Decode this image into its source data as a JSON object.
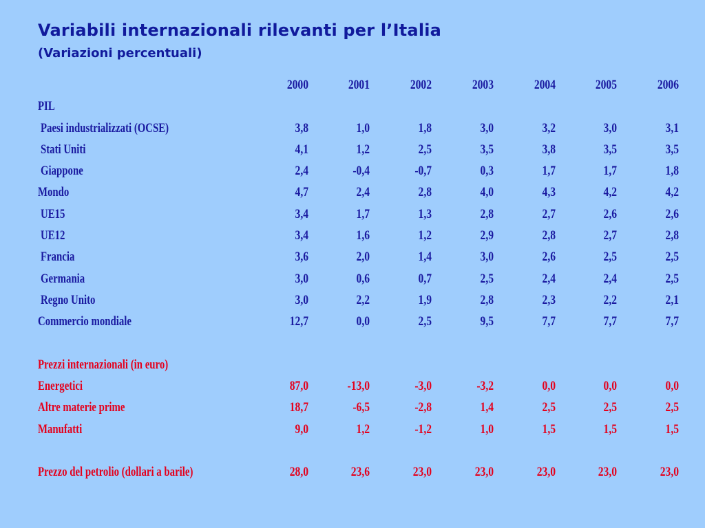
{
  "title": "Variabili internazionali rilevanti per l’Italia",
  "subtitle": "(Variazioni percentuali)",
  "colors": {
    "background": "#9fcdfd",
    "primary": "#1a1aa0",
    "accent": "#e4001c"
  },
  "years": [
    "2000",
    "2001",
    "2002",
    "2003",
    "2004",
    "2005",
    "2006"
  ],
  "section_blue": {
    "header": "PIL",
    "rows": [
      {
        "label": "Paesi industrializzati (OCSE)",
        "values": [
          "3,8",
          "1,0",
          "1,8",
          "3,0",
          "3,2",
          "3,0",
          "3,1"
        ]
      },
      {
        "label": "Stati Uniti",
        "values": [
          "4,1",
          "1,2",
          "2,5",
          "3,5",
          "3,8",
          "3,5",
          "3,5"
        ]
      },
      {
        "label": "Giappone",
        "values": [
          "2,4",
          "-0,4",
          "-0,7",
          "0,3",
          "1,7",
          "1,7",
          "1,8"
        ]
      },
      {
        "label": "Mondo",
        "values": [
          "4,7",
          "2,4",
          "2,8",
          "4,0",
          "4,3",
          "4,2",
          "4,2"
        ]
      },
      {
        "label": "UE15",
        "values": [
          "3,4",
          "1,7",
          "1,3",
          "2,8",
          "2,7",
          "2,6",
          "2,6"
        ]
      },
      {
        "label": "UE12",
        "values": [
          "3,4",
          "1,6",
          "1,2",
          "2,9",
          "2,8",
          "2,7",
          "2,8"
        ]
      },
      {
        "label": "Francia",
        "values": [
          "3,6",
          "2,0",
          "1,4",
          "3,0",
          "2,6",
          "2,5",
          "2,5"
        ]
      },
      {
        "label": "Germania",
        "values": [
          "3,0",
          "0,6",
          "0,7",
          "2,5",
          "2,4",
          "2,4",
          "2,5"
        ]
      },
      {
        "label": "Regno Unito",
        "values": [
          "3,0",
          "2,2",
          "1,9",
          "2,8",
          "2,3",
          "2,2",
          "2,1"
        ]
      },
      {
        "label": "Commercio mondiale",
        "values": [
          "12,7",
          "0,0",
          "2,5",
          "9,5",
          "7,7",
          "7,7",
          "7,7"
        ]
      }
    ]
  },
  "section_red": {
    "header": "Prezzi internazionali (in euro)",
    "rows": [
      {
        "label": "Energetici",
        "values": [
          "87,0",
          "-13,0",
          "-3,0",
          "-3,2",
          "0,0",
          "0,0",
          "0,0"
        ]
      },
      {
        "label": "Altre materie prime",
        "values": [
          "18,7",
          "-6,5",
          "-2,8",
          "1,4",
          "2,5",
          "2,5",
          "2,5"
        ]
      },
      {
        "label": "Manufatti",
        "values": [
          "9,0",
          "1,2",
          "-1,2",
          "1,0",
          "1,5",
          "1,5",
          "1,5"
        ]
      }
    ]
  },
  "oil": {
    "label": "Prezzo del petrolio (dollari a barile)",
    "values": [
      "28,0",
      "23,6",
      "23,0",
      "23,0",
      "23,0",
      "23,0",
      "23,0"
    ]
  }
}
